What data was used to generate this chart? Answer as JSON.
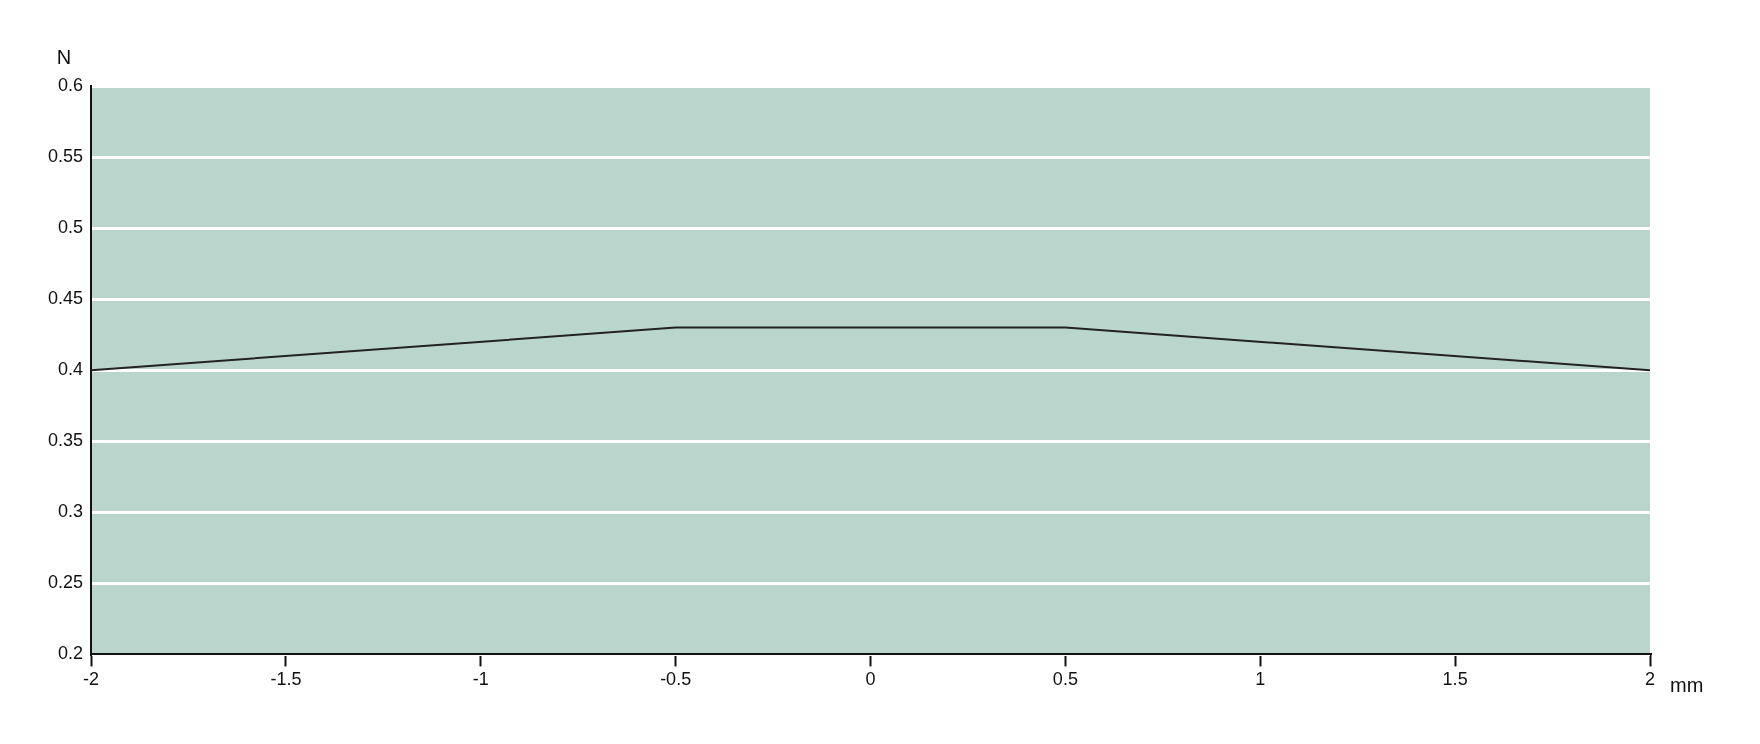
{
  "chart_data": {
    "type": "line",
    "xlabel": "mm",
    "ylabel": "N",
    "x": [
      -2,
      -0.5,
      0.5,
      2
    ],
    "series": [
      {
        "color": "#222222",
        "values": [
          0.4,
          0.43,
          0.43,
          0.4
        ]
      }
    ],
    "xlim": [
      -2,
      2
    ],
    "xticks": [
      -2,
      -1.5,
      -1,
      -0.5,
      0,
      0.5,
      1,
      1.5,
      2
    ],
    "ylim": [
      0.2,
      0.6
    ],
    "yticks": [
      0.2,
      0.25,
      0.3,
      0.35,
      0.4,
      0.45,
      0.5,
      0.55,
      0.6
    ],
    "grid": "y",
    "legend": false,
    "marker": "none",
    "line_style": "solid"
  }
}
